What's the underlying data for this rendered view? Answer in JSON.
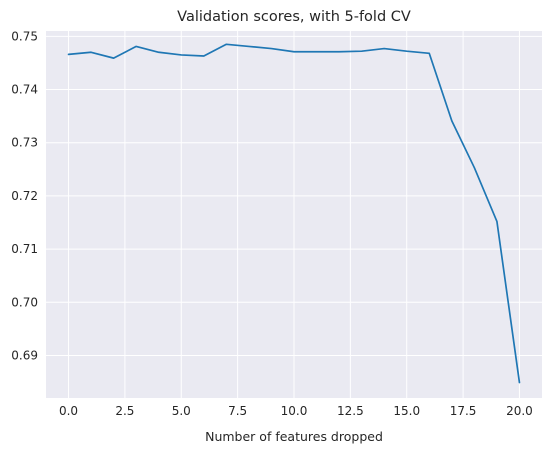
{
  "chart_data": {
    "type": "line",
    "title": "Validation scores, with 5-fold CV",
    "xlabel": "Number of features dropped",
    "ylabel": "",
    "xlim": [
      -1,
      21
    ],
    "ylim": [
      0.682,
      0.751
    ],
    "xticks": [
      0.0,
      2.5,
      5.0,
      7.5,
      10.0,
      12.5,
      15.0,
      17.5,
      20.0
    ],
    "xtick_labels": [
      "0.0",
      "2.5",
      "5.0",
      "7.5",
      "10.0",
      "12.5",
      "15.0",
      "17.5",
      "20.0"
    ],
    "yticks": [
      0.69,
      0.7,
      0.71,
      0.72,
      0.73,
      0.74,
      0.75
    ],
    "ytick_labels": [
      "0.69",
      "0.70",
      "0.71",
      "0.72",
      "0.73",
      "0.74",
      "0.75"
    ],
    "grid": true,
    "line_color": "#1f77b4",
    "background_color": "#eaeaf2",
    "series": [
      {
        "x": [
          0,
          1,
          2,
          3,
          4,
          5,
          6,
          7,
          8,
          9,
          10,
          11,
          12,
          13,
          14,
          15,
          16,
          17,
          18,
          19,
          20
        ],
        "values": [
          0.7466,
          0.747,
          0.7459,
          0.7481,
          0.747,
          0.7465,
          0.7463,
          0.7485,
          0.7481,
          0.7477,
          0.7471,
          0.7471,
          0.7471,
          0.7472,
          0.7477,
          0.7472,
          0.7468,
          0.7341,
          0.7253,
          0.7152,
          0.6849
        ]
      }
    ]
  }
}
